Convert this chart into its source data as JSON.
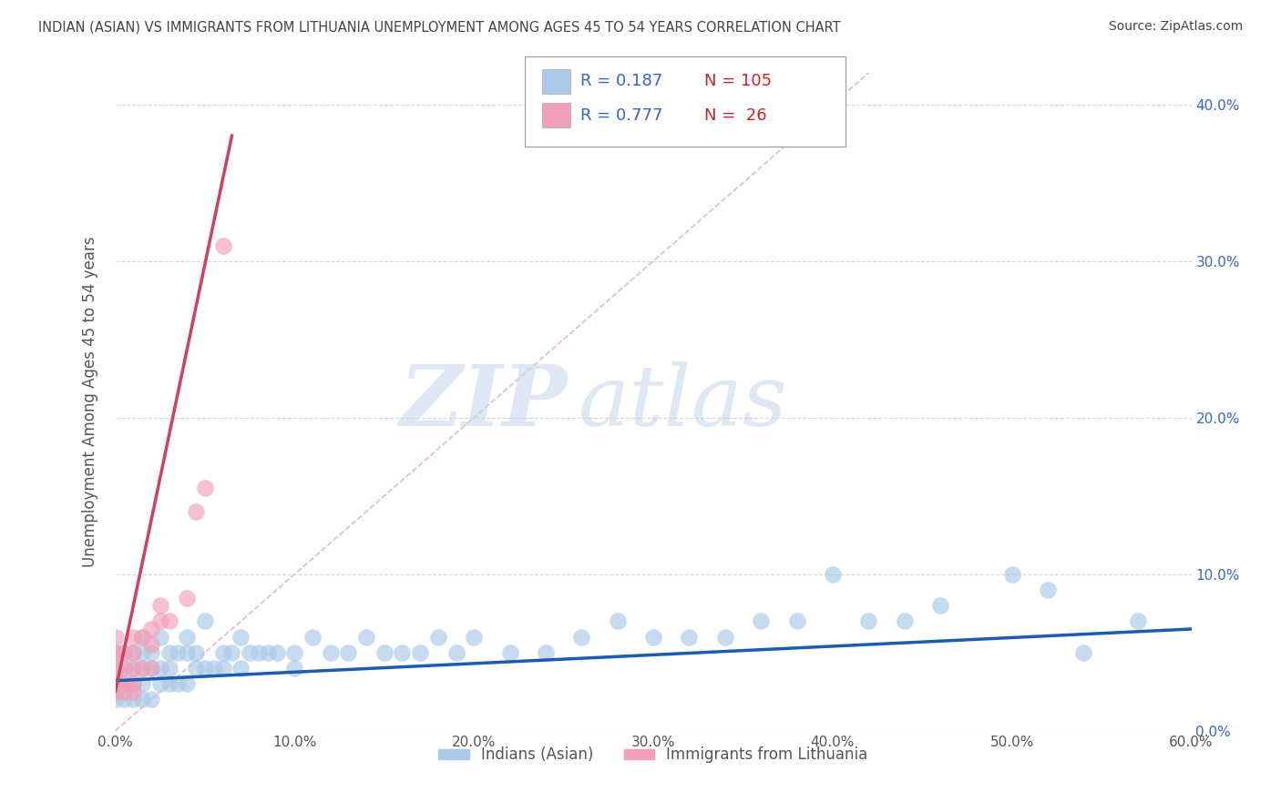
{
  "title": "INDIAN (ASIAN) VS IMMIGRANTS FROM LITHUANIA UNEMPLOYMENT AMONG AGES 45 TO 54 YEARS CORRELATION CHART",
  "source": "Source: ZipAtlas.com",
  "ylabel": "Unemployment Among Ages 45 to 54 years",
  "xlim": [
    0.0,
    0.6
  ],
  "ylim": [
    0.0,
    0.42
  ],
  "xticks": [
    0.0,
    0.1,
    0.2,
    0.3,
    0.4,
    0.5,
    0.6
  ],
  "xticklabels": [
    "0.0%",
    "10.0%",
    "20.0%",
    "30.0%",
    "40.0%",
    "50.0%",
    "60.0%"
  ],
  "yticks": [
    0.0,
    0.1,
    0.2,
    0.3,
    0.4
  ],
  "yticklabels_right": [
    "0.0%",
    "10.0%",
    "20.0%",
    "30.0%",
    "40.0%"
  ],
  "legend_entries": [
    {
      "label": "Indians (Asian)",
      "color": "#aac8e8",
      "R": "0.187",
      "N": "105"
    },
    {
      "label": "Immigrants from Lithuania",
      "color": "#f0a0b8",
      "R": "0.777",
      "N": "26"
    }
  ],
  "watermark_zip": "ZIP",
  "watermark_atlas": "atlas",
  "blue_color": "#aac8e8",
  "blue_line_color": "#1a5cb0",
  "pink_color": "#f0a0b8",
  "pink_line_color": "#d04060",
  "blue_scatter_x": [
    0.0,
    0.0,
    0.0,
    0.0,
    0.005,
    0.005,
    0.005,
    0.005,
    0.01,
    0.01,
    0.01,
    0.01,
    0.015,
    0.015,
    0.015,
    0.015,
    0.015,
    0.02,
    0.02,
    0.02,
    0.025,
    0.025,
    0.025,
    0.03,
    0.03,
    0.03,
    0.035,
    0.035,
    0.04,
    0.04,
    0.04,
    0.045,
    0.045,
    0.05,
    0.05,
    0.055,
    0.06,
    0.06,
    0.065,
    0.07,
    0.07,
    0.075,
    0.08,
    0.085,
    0.09,
    0.1,
    0.1,
    0.11,
    0.12,
    0.13,
    0.14,
    0.15,
    0.16,
    0.17,
    0.18,
    0.19,
    0.2,
    0.22,
    0.24,
    0.26,
    0.28,
    0.3,
    0.32,
    0.34,
    0.36,
    0.38,
    0.4,
    0.42,
    0.44,
    0.46,
    0.5,
    0.52,
    0.54,
    0.57
  ],
  "blue_scatter_y": [
    0.02,
    0.03,
    0.04,
    0.05,
    0.02,
    0.03,
    0.04,
    0.05,
    0.02,
    0.03,
    0.04,
    0.05,
    0.02,
    0.03,
    0.04,
    0.05,
    0.06,
    0.02,
    0.04,
    0.05,
    0.03,
    0.04,
    0.06,
    0.03,
    0.04,
    0.05,
    0.03,
    0.05,
    0.03,
    0.05,
    0.06,
    0.04,
    0.05,
    0.04,
    0.07,
    0.04,
    0.04,
    0.05,
    0.05,
    0.04,
    0.06,
    0.05,
    0.05,
    0.05,
    0.05,
    0.04,
    0.05,
    0.06,
    0.05,
    0.05,
    0.06,
    0.05,
    0.05,
    0.05,
    0.06,
    0.05,
    0.06,
    0.05,
    0.05,
    0.06,
    0.07,
    0.06,
    0.06,
    0.06,
    0.07,
    0.07,
    0.1,
    0.07,
    0.07,
    0.08,
    0.1,
    0.09,
    0.05,
    0.07
  ],
  "pink_scatter_x": [
    0.0,
    0.0,
    0.0,
    0.0,
    0.0,
    0.005,
    0.005,
    0.005,
    0.005,
    0.01,
    0.01,
    0.01,
    0.01,
    0.01,
    0.015,
    0.015,
    0.02,
    0.02,
    0.02,
    0.025,
    0.025,
    0.03,
    0.04,
    0.045,
    0.05,
    0.06
  ],
  "pink_scatter_y": [
    0.025,
    0.03,
    0.04,
    0.05,
    0.06,
    0.025,
    0.03,
    0.04,
    0.05,
    0.025,
    0.03,
    0.04,
    0.05,
    0.06,
    0.04,
    0.06,
    0.04,
    0.055,
    0.065,
    0.07,
    0.08,
    0.07,
    0.085,
    0.14,
    0.155,
    0.31
  ],
  "blue_trend_x": [
    0.0,
    0.6
  ],
  "blue_trend_y": [
    0.032,
    0.065
  ],
  "pink_trend_x": [
    0.0,
    0.065
  ],
  "pink_trend_y": [
    0.025,
    0.38
  ],
  "ref_line_x": [
    0.0,
    0.42
  ],
  "ref_line_y": [
    0.0,
    0.42
  ],
  "background_color": "#ffffff",
  "grid_color": "#cccccc",
  "title_color": "#444444",
  "axis_color": "#555555",
  "right_axis_color": "#3366cc"
}
